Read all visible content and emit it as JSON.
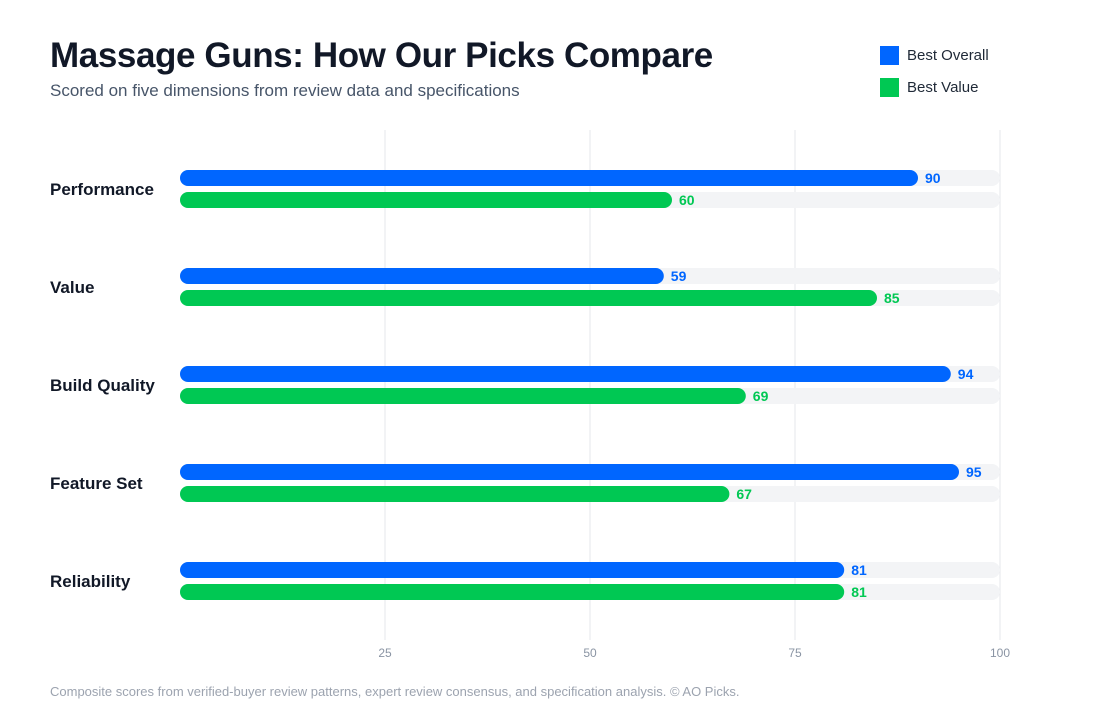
{
  "chart_data": {
    "type": "bar",
    "orientation": "horizontal",
    "title": "Massage Guns: How Our Picks Compare",
    "subtitle": "Scored on five dimensions from review data and specifications",
    "categories": [
      "Performance",
      "Value",
      "Build Quality",
      "Feature Set",
      "Reliability"
    ],
    "series": [
      {
        "name": "Best Overall",
        "color": "#0066ff",
        "values": [
          90,
          59,
          94,
          95,
          81
        ]
      },
      {
        "name": "Best Value",
        "color": "#00c853",
        "values": [
          60,
          85,
          69,
          67,
          81
        ]
      }
    ],
    "xlim": [
      0,
      100
    ],
    "x_ticks": [
      25,
      50,
      75,
      100
    ],
    "grid": true,
    "legend_position": "top-right",
    "data_labels": true,
    "track_color": "#f3f4f6",
    "grid_color": "#e5e7eb"
  },
  "footer": {
    "note": "Composite scores from verified-buyer review patterns, expert review consensus, and specification analysis. © AO Picks."
  }
}
